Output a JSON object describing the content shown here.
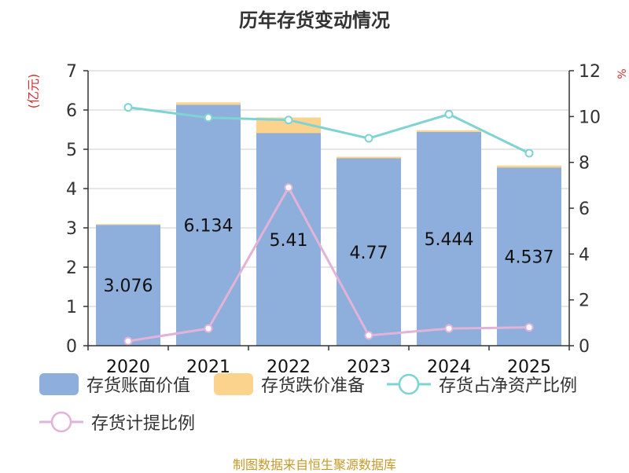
{
  "title": "历年存货变动情况",
  "source": "制图数据来自恒生聚源数据库",
  "chart_data": {
    "type": "bar",
    "title": "历年存货变动情况",
    "categories": [
      "2020",
      "2021",
      "2022",
      "2023",
      "2024",
      "2025"
    ],
    "y_left": {
      "label": "(亿元)",
      "range": [
        0,
        7
      ],
      "ticks": [
        0,
        1,
        2,
        3,
        4,
        5,
        6,
        7
      ]
    },
    "y_right": {
      "label": "%",
      "range": [
        0,
        12
      ],
      "ticks": [
        0,
        2,
        4,
        6,
        8,
        10,
        12
      ]
    },
    "series": [
      {
        "name": "存货账面价值",
        "type": "bar",
        "axis": "left",
        "stack": "inv",
        "color": "#8eaedb",
        "values": [
          3.076,
          6.134,
          5.41,
          4.77,
          5.444,
          4.537
        ],
        "labels": [
          "3.076",
          "6.134",
          "5.41",
          "4.77",
          "5.444",
          "4.537"
        ]
      },
      {
        "name": "存货跌价准备",
        "type": "bar",
        "axis": "left",
        "stack": "inv",
        "color": "#fbd38d",
        "values": [
          0.02,
          0.06,
          0.4,
          0.04,
          0.04,
          0.05
        ]
      },
      {
        "name": "存货占净资产比例",
        "type": "line",
        "axis": "right",
        "color": "#7ed3d3",
        "values": [
          10.4,
          9.95,
          9.85,
          9.05,
          10.1,
          8.4
        ]
      },
      {
        "name": "存货计提比例",
        "type": "line",
        "axis": "right",
        "color": "#e2b3d8",
        "values": [
          0.2,
          0.75,
          6.9,
          0.45,
          0.75,
          0.8
        ]
      }
    ],
    "grid": true,
    "legend_position": "bottom"
  }
}
